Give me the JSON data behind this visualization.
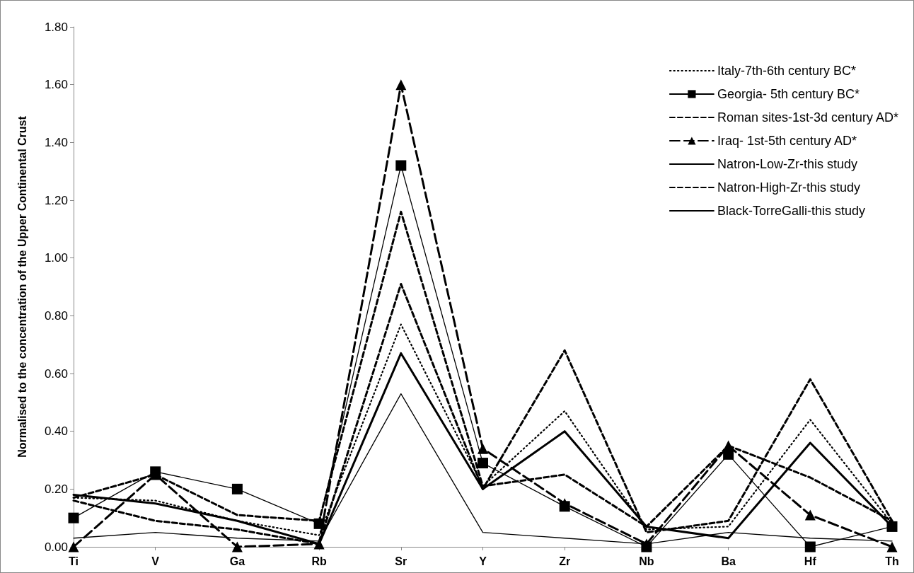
{
  "chart_data": {
    "type": "line",
    "ylabel": "Normalised to the concentration of the Upper Continental Crust",
    "categories": [
      "Ti",
      "V",
      "Ga",
      "Rb",
      "Sr",
      "Y",
      "Zr",
      "Nb",
      "Ba",
      "Hf",
      "Th"
    ],
    "series": [
      {
        "name": "Italy-7th-6th century BC*",
        "color": "#000000",
        "line_style": "dotted",
        "marker": "none",
        "values": [
          0.17,
          0.16,
          0.09,
          0.04,
          0.77,
          0.21,
          0.47,
          0.06,
          0.07,
          0.44,
          0.08
        ]
      },
      {
        "name": "Georgia- 5th century BC*",
        "color": "#000000",
        "line_style": "solid",
        "marker": "square",
        "values": [
          0.1,
          0.26,
          0.2,
          0.08,
          1.32,
          0.29,
          0.14,
          0.0,
          0.32,
          0.0,
          0.07
        ]
      },
      {
        "name": "Roman sites-1st-3d century AD*",
        "color": "#000000",
        "line_style": "dashed",
        "marker": "none",
        "values": [
          0.17,
          0.25,
          0.11,
          0.09,
          1.16,
          0.21,
          0.25,
          0.07,
          0.35,
          0.24,
          0.09
        ]
      },
      {
        "name": "Iraq- 1st-5th century AD*",
        "color": "#000000",
        "line_style": "dashed",
        "marker": "triangle",
        "values": [
          0.0,
          0.25,
          0.0,
          0.01,
          1.6,
          0.34,
          0.15,
          0.01,
          0.35,
          0.11,
          0.0
        ]
      },
      {
        "name": "Natron-Low-Zr-this study",
        "color": "#000000",
        "line_style": "solid",
        "marker": "none",
        "values": [
          0.03,
          0.05,
          0.03,
          0.02,
          0.53,
          0.05,
          0.03,
          0.01,
          0.05,
          0.03,
          0.02
        ]
      },
      {
        "name": "Natron-High-Zr-this study",
        "color": "#000000",
        "line_style": "dashed",
        "marker": "none",
        "values": [
          0.16,
          0.09,
          0.06,
          0.01,
          0.91,
          0.2,
          0.68,
          0.05,
          0.09,
          0.58,
          0.09
        ]
      },
      {
        "name": "Black-TorreGalli-this study",
        "color": "#000000",
        "line_style": "solid",
        "marker": "none",
        "values": [
          0.18,
          0.15,
          0.09,
          0.01,
          0.67,
          0.2,
          0.4,
          0.07,
          0.03,
          0.36,
          0.07
        ]
      }
    ],
    "ylim": [
      0,
      1.8
    ],
    "yticks": [
      {
        "value": 0,
        "label": "0.00"
      },
      {
        "value": 0.2,
        "label": "0.20"
      },
      {
        "value": 0.4,
        "label": "0.40"
      },
      {
        "value": 0.6,
        "label": "0.60"
      },
      {
        "value": 0.8,
        "label": "0.80"
      },
      {
        "value": 1.0,
        "label": "1.00"
      },
      {
        "value": 1.2,
        "label": "1.20"
      },
      {
        "value": 1.4,
        "label": "1.40"
      },
      {
        "value": 1.6,
        "label": "1.60"
      },
      {
        "value": 1.8,
        "label": "1.80"
      }
    ],
    "grid": false,
    "legend": "top right"
  }
}
